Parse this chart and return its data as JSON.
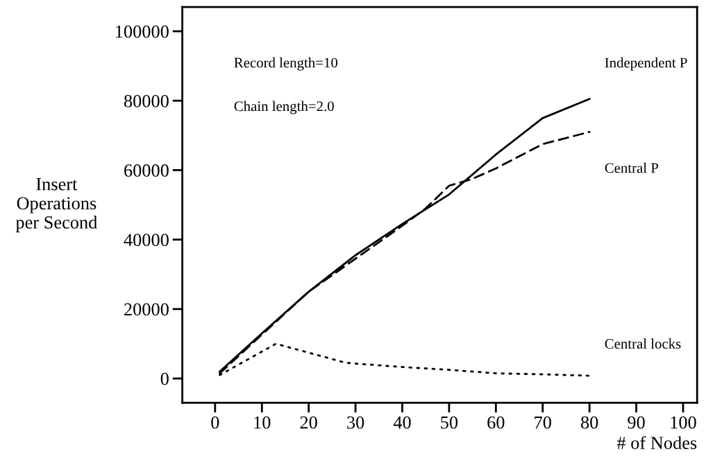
{
  "chart_data": {
    "type": "line",
    "xlabel": "# of Nodes",
    "ylabel": "Insert\nOperations\nper Second",
    "annotations": [
      "Record length=10",
      "Chain length=2.0"
    ],
    "xlim": [
      -7,
      103
    ],
    "ylim": [
      -7000,
      107000
    ],
    "xticks": [
      0,
      10,
      20,
      30,
      40,
      50,
      60,
      70,
      80,
      90,
      100
    ],
    "yticks": [
      0,
      20000,
      40000,
      60000,
      80000,
      100000
    ],
    "grid": false,
    "legend": false,
    "series": [
      {
        "name": "Independent P",
        "color": "#000000",
        "line_style": "solid",
        "x": [
          1,
          10,
          20,
          30,
          40,
          50,
          60,
          70,
          80
        ],
        "values": [
          2000,
          13000,
          25000,
          35500,
          44500,
          53000,
          64500,
          75000,
          80500
        ]
      },
      {
        "name": "Central P",
        "color": "#000000",
        "line_style": "dashed",
        "x": [
          1,
          20,
          30,
          40,
          45,
          50,
          55,
          60,
          70,
          80
        ],
        "values": [
          1500,
          25000,
          34500,
          44000,
          49000,
          55500,
          57500,
          60500,
          67500,
          71000
        ]
      },
      {
        "name": "Central locks",
        "color": "#000000",
        "line_style": "dotted",
        "x": [
          1,
          13,
          28,
          40,
          50,
          60,
          70,
          80
        ],
        "values": [
          1000,
          10000,
          4500,
          3300,
          2500,
          1500,
          1200,
          800
        ]
      }
    ]
  }
}
